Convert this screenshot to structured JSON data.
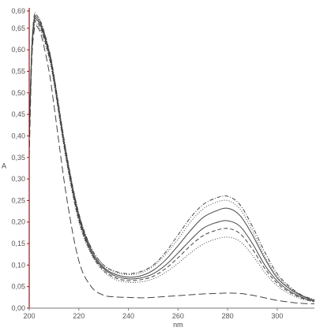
{
  "chart_data": {
    "type": "line",
    "xlabel": "nm",
    "ylabel": "A",
    "xlim": [
      200,
      315
    ],
    "ylim": [
      0,
      0.69
    ],
    "grid": false,
    "x_ticks": [
      200,
      220,
      240,
      260,
      280,
      300
    ],
    "x_tick_labels": [
      "200",
      "220",
      "240",
      "260",
      "280",
      "300"
    ],
    "y_ticks": [
      0.0,
      0.05,
      0.1,
      0.15,
      0.2,
      0.25,
      0.3,
      0.35,
      0.4,
      0.45,
      0.5,
      0.55,
      0.6,
      0.65,
      0.69
    ],
    "y_tick_labels": [
      "0,00",
      "0,05",
      "0,10",
      "0,15",
      "0,20",
      "0,25",
      "0,30",
      "0,35",
      "0,40",
      "0,45",
      "0,50",
      "0,55",
      "0,60",
      "0,65",
      "0,69"
    ],
    "colors": {
      "axis": "#8b1a1a",
      "series": "#444444"
    },
    "x": [
      200,
      201,
      202,
      203,
      205,
      208,
      210,
      215,
      220,
      225,
      230,
      235,
      240,
      245,
      250,
      255,
      260,
      265,
      270,
      275,
      280,
      285,
      290,
      295,
      300,
      305,
      310,
      315
    ],
    "series": [
      {
        "style": "dash-dot",
        "values": [
          0.4,
          0.6,
          0.68,
          0.68,
          0.66,
          0.6,
          0.54,
          0.36,
          0.22,
          0.14,
          0.1,
          0.085,
          0.08,
          0.085,
          0.1,
          0.13,
          0.17,
          0.21,
          0.24,
          0.255,
          0.26,
          0.24,
          0.19,
          0.13,
          0.08,
          0.05,
          0.03,
          0.02
        ]
      },
      {
        "style": "dotted",
        "values": [
          0.4,
          0.6,
          0.67,
          0.68,
          0.66,
          0.6,
          0.54,
          0.36,
          0.22,
          0.14,
          0.1,
          0.083,
          0.078,
          0.082,
          0.097,
          0.125,
          0.16,
          0.2,
          0.23,
          0.245,
          0.25,
          0.23,
          0.18,
          0.12,
          0.075,
          0.048,
          0.03,
          0.02
        ]
      },
      {
        "style": "solid",
        "values": [
          0.4,
          0.6,
          0.67,
          0.675,
          0.655,
          0.595,
          0.535,
          0.355,
          0.215,
          0.135,
          0.095,
          0.078,
          0.072,
          0.075,
          0.088,
          0.112,
          0.145,
          0.18,
          0.21,
          0.225,
          0.232,
          0.215,
          0.17,
          0.115,
          0.07,
          0.045,
          0.028,
          0.018
        ]
      },
      {
        "style": "solid",
        "values": [
          0.4,
          0.59,
          0.665,
          0.67,
          0.65,
          0.59,
          0.53,
          0.35,
          0.21,
          0.13,
          0.092,
          0.074,
          0.068,
          0.07,
          0.08,
          0.1,
          0.128,
          0.158,
          0.185,
          0.198,
          0.203,
          0.19,
          0.15,
          0.1,
          0.063,
          0.04,
          0.025,
          0.016
        ]
      },
      {
        "style": "dashed",
        "values": [
          0.4,
          0.59,
          0.66,
          0.665,
          0.645,
          0.585,
          0.525,
          0.345,
          0.205,
          0.128,
          0.088,
          0.07,
          0.064,
          0.066,
          0.074,
          0.092,
          0.117,
          0.145,
          0.168,
          0.18,
          0.185,
          0.173,
          0.137,
          0.092,
          0.058,
          0.037,
          0.023,
          0.015
        ]
      },
      {
        "style": "dotted",
        "values": [
          0.4,
          0.585,
          0.655,
          0.66,
          0.64,
          0.58,
          0.52,
          0.34,
          0.2,
          0.125,
          0.085,
          0.066,
          0.06,
          0.061,
          0.068,
          0.083,
          0.104,
          0.128,
          0.148,
          0.16,
          0.165,
          0.155,
          0.123,
          0.083,
          0.052,
          0.033,
          0.021,
          0.014
        ]
      },
      {
        "style": "long-dash",
        "values": [
          0.35,
          0.57,
          0.645,
          0.655,
          0.63,
          0.55,
          0.47,
          0.26,
          0.11,
          0.05,
          0.03,
          0.026,
          0.025,
          0.024,
          0.025,
          0.027,
          0.029,
          0.031,
          0.033,
          0.034,
          0.035,
          0.034,
          0.03,
          0.024,
          0.018,
          0.014,
          0.011,
          0.01
        ]
      }
    ]
  }
}
